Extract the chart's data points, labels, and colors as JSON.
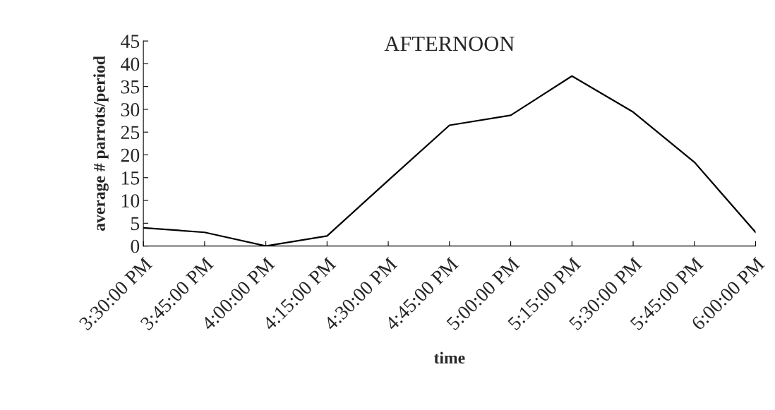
{
  "chart_data": {
    "type": "line",
    "title": "AFTERNOON",
    "xlabel": "time",
    "ylabel": "average # parrots/period",
    "categories": [
      "3:30:00 PM",
      "3:45:00 PM",
      "4:00:00 PM",
      "4:15:00 PM",
      "4:30:00 PM",
      "4:45:00 PM",
      "5:00:00 PM",
      "5:15:00 PM",
      "5:30:00 PM",
      "5:45:00 PM",
      "6:00:00 PM"
    ],
    "series": [
      {
        "color": "#000000",
        "values": [
          4,
          3,
          0,
          2.2,
          14.4,
          26.5,
          28.7,
          37.3,
          29.4,
          18.4,
          3
        ]
      }
    ],
    "ylim": [
      0,
      45
    ],
    "yticks": [
      0,
      5,
      10,
      15,
      20,
      25,
      30,
      35,
      40,
      45
    ],
    "grid": false,
    "legend": false,
    "marker": "none",
    "line_style": "solid"
  }
}
